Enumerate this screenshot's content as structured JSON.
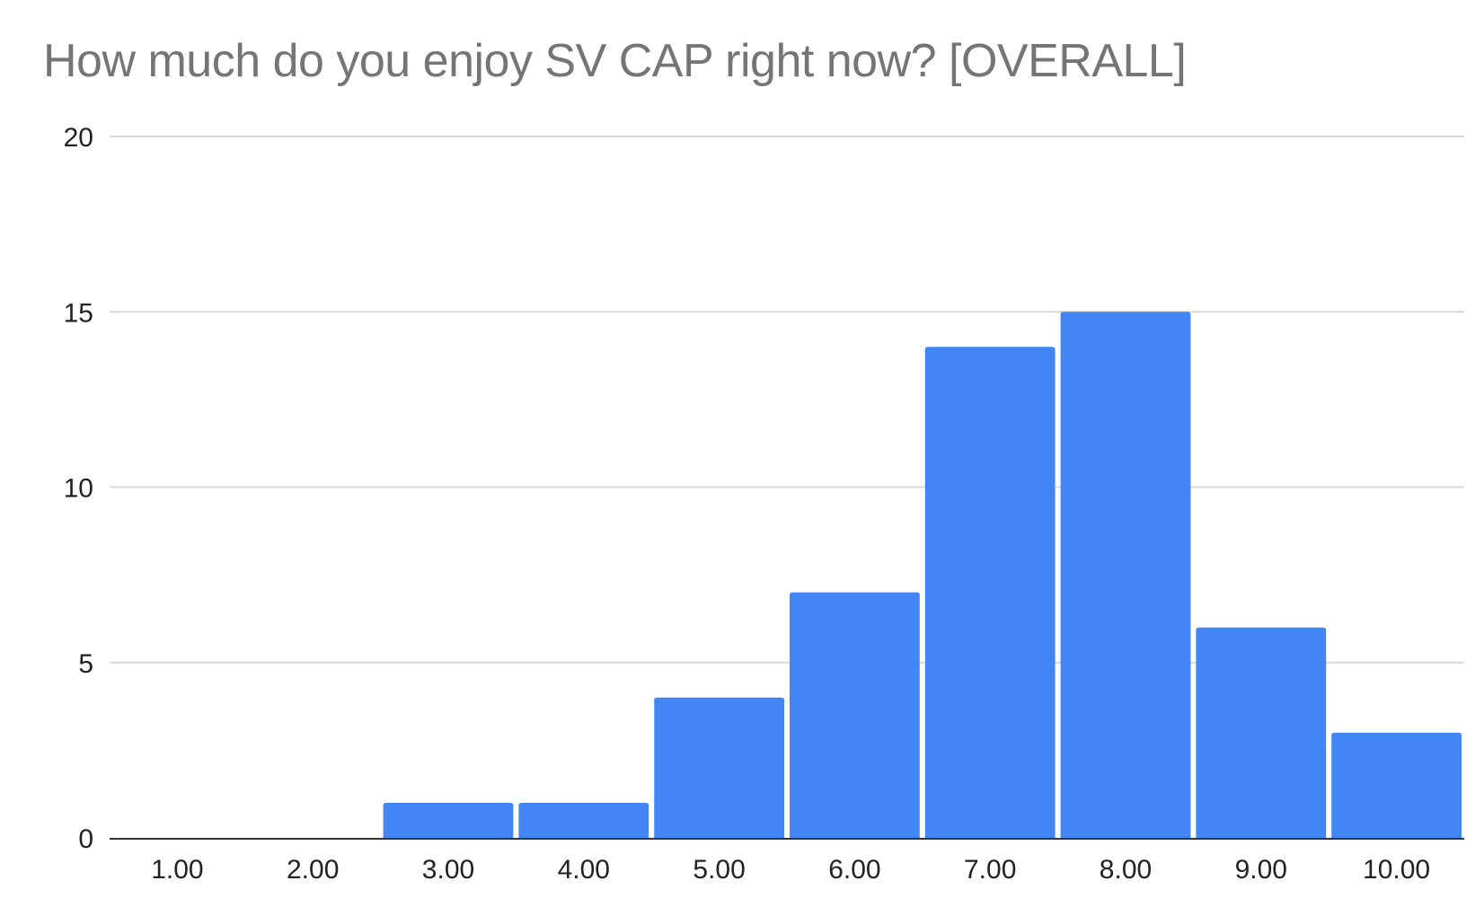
{
  "chart_data": {
    "type": "bar",
    "title": "How much do you enjoy SV CAP right now? [OVERALL]",
    "xlabel": "",
    "ylabel": "",
    "categories": [
      "1.00",
      "2.00",
      "3.00",
      "4.00",
      "5.00",
      "6.00",
      "7.00",
      "8.00",
      "9.00",
      "10.00"
    ],
    "values": [
      0,
      0,
      1,
      1,
      4,
      7,
      14,
      15,
      6,
      3
    ],
    "ylim": [
      0,
      20
    ],
    "yticks": [
      0,
      5,
      10,
      15,
      20
    ],
    "grid": true,
    "legend": "none",
    "colors": {
      "bar": "#4285f4",
      "gridline": "#d9d9d9",
      "baseline": "#333333",
      "title": "#757575"
    }
  }
}
